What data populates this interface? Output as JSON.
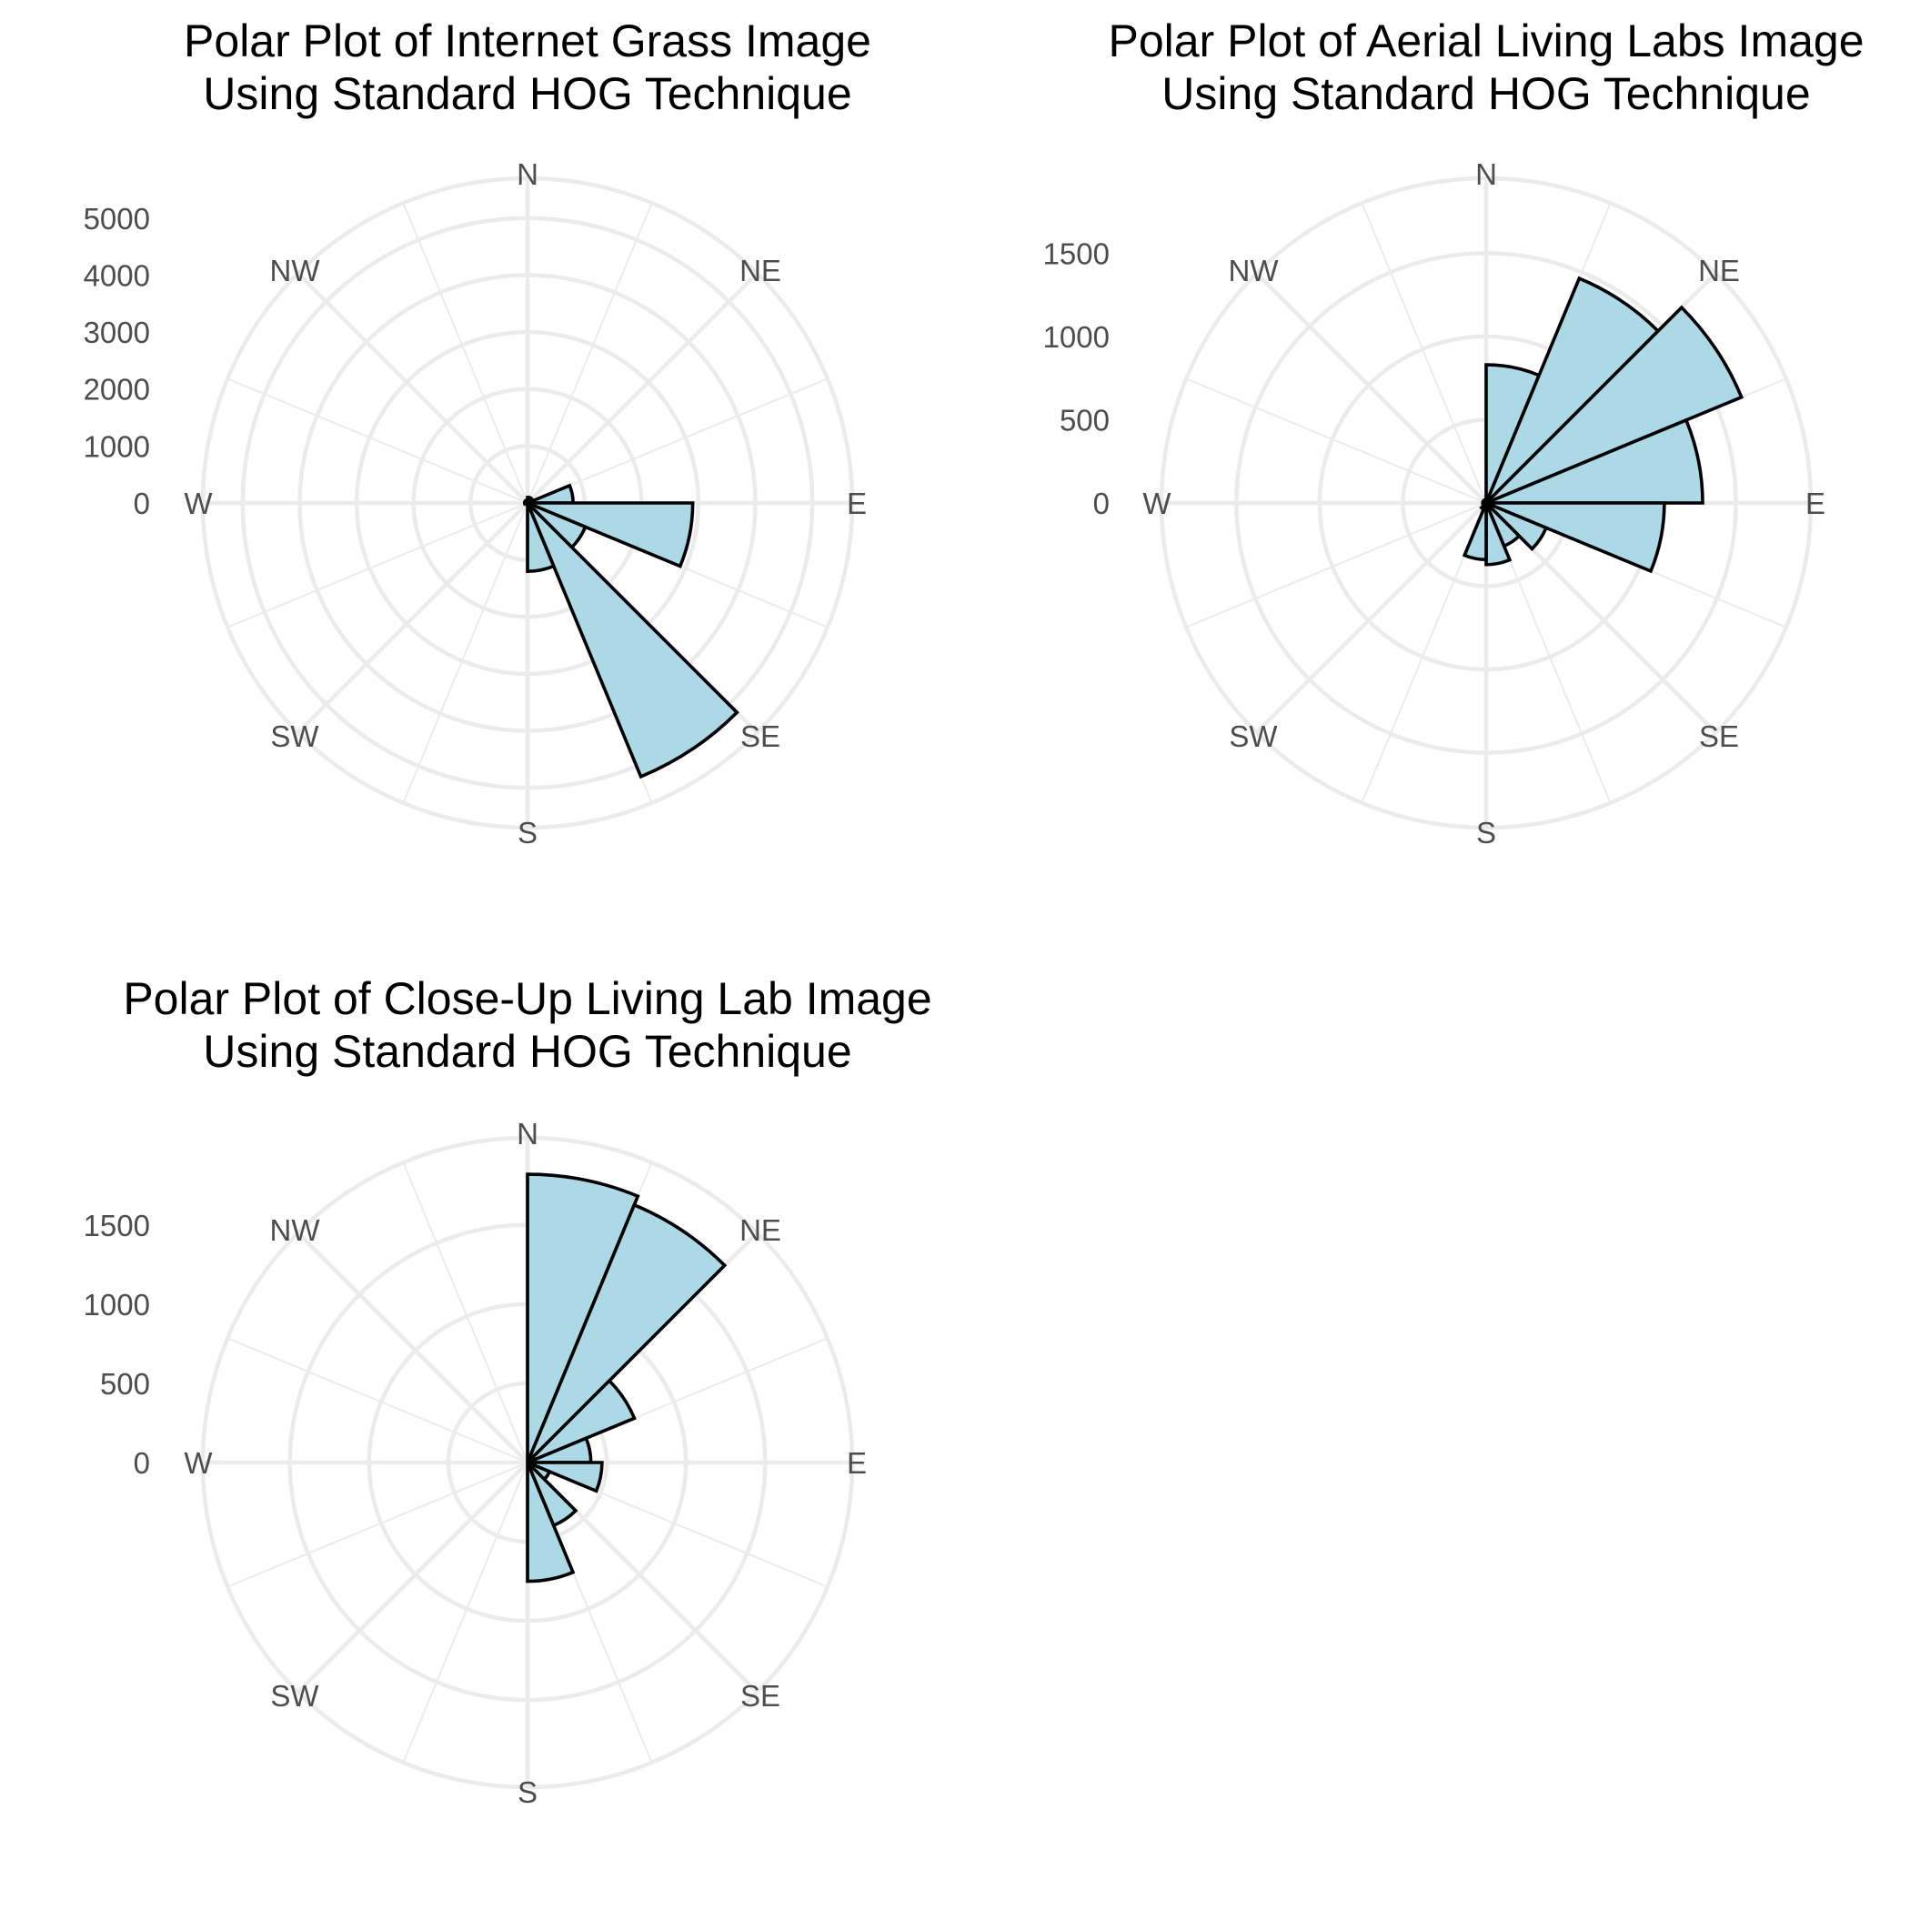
{
  "colors": {
    "bar_fill": "#add8e6",
    "bar_stroke": "#000000",
    "grid": "#ebebeb",
    "axis_text": "#4d4d4d"
  },
  "chart_data": [
    {
      "type": "polar-bar",
      "title_lines": [
        "Polar Plot of Internet Grass Image",
        "Using Standard HOG Technique"
      ],
      "angle_unit": "degrees clockwise from N",
      "directions": [
        "N",
        "NE",
        "E",
        "SE",
        "S",
        "SW",
        "W",
        "NW"
      ],
      "radial_ticks": [
        "0",
        "1000",
        "2000",
        "3000",
        "4000",
        "5000"
      ],
      "radial_tick_values": [
        0,
        1000,
        2000,
        3000,
        4000,
        5000
      ],
      "rmax": 5700,
      "bins": [
        {
          "start": 0,
          "end": 22.5,
          "value": 100
        },
        {
          "start": 22.5,
          "end": 45,
          "value": 100
        },
        {
          "start": 45,
          "end": 67.5,
          "value": 100
        },
        {
          "start": 67.5,
          "end": 90,
          "value": 800
        },
        {
          "start": 90,
          "end": 112.5,
          "value": 2900
        },
        {
          "start": 112.5,
          "end": 135,
          "value": 1100
        },
        {
          "start": 135,
          "end": 157.5,
          "value": 5200
        },
        {
          "start": 157.5,
          "end": 180,
          "value": 1200
        },
        {
          "start": 180,
          "end": 202.5,
          "value": 0
        },
        {
          "start": 202.5,
          "end": 225,
          "value": 0
        },
        {
          "start": 225,
          "end": 247.5,
          "value": 0
        },
        {
          "start": 247.5,
          "end": 270,
          "value": 50
        },
        {
          "start": 270,
          "end": 292.5,
          "value": 50
        },
        {
          "start": 292.5,
          "end": 315,
          "value": 50
        },
        {
          "start": 315,
          "end": 337.5,
          "value": 50
        },
        {
          "start": 337.5,
          "end": 360,
          "value": 50
        }
      ]
    },
    {
      "type": "polar-bar",
      "title_lines": [
        "Polar Plot of Aerial Living Labs Image",
        "Using Standard HOG Technique"
      ],
      "angle_unit": "degrees clockwise from N",
      "directions": [
        "N",
        "NE",
        "E",
        "SE",
        "S",
        "SW",
        "W",
        "NW"
      ],
      "radial_ticks": [
        "0",
        "500",
        "1000",
        "1500"
      ],
      "radial_tick_values": [
        0,
        500,
        1000,
        1500
      ],
      "rmax": 1950,
      "bins": [
        {
          "start": 0,
          "end": 22.5,
          "value": 830
        },
        {
          "start": 22.5,
          "end": 45,
          "value": 1460
        },
        {
          "start": 45,
          "end": 67.5,
          "value": 1660
        },
        {
          "start": 67.5,
          "end": 90,
          "value": 1300
        },
        {
          "start": 90,
          "end": 112.5,
          "value": 1070
        },
        {
          "start": 112.5,
          "end": 135,
          "value": 390
        },
        {
          "start": 135,
          "end": 157.5,
          "value": 280
        },
        {
          "start": 157.5,
          "end": 180,
          "value": 370
        },
        {
          "start": 180,
          "end": 202.5,
          "value": 340
        },
        {
          "start": 202.5,
          "end": 225,
          "value": 40
        },
        {
          "start": 225,
          "end": 247.5,
          "value": 20
        },
        {
          "start": 247.5,
          "end": 270,
          "value": 20
        },
        {
          "start": 270,
          "end": 292.5,
          "value": 20
        },
        {
          "start": 292.5,
          "end": 315,
          "value": 20
        },
        {
          "start": 315,
          "end": 337.5,
          "value": 20
        },
        {
          "start": 337.5,
          "end": 360,
          "value": 20
        }
      ]
    },
    {
      "type": "polar-bar",
      "title_lines": [
        "Polar Plot of Close-Up Living Lab Image",
        "Using Standard HOG Technique"
      ],
      "angle_unit": "degrees clockwise from N",
      "directions": [
        "N",
        "NE",
        "E",
        "SE",
        "S",
        "SW",
        "W",
        "NW"
      ],
      "radial_ticks": [
        "0",
        "500",
        "1000",
        "1500"
      ],
      "radial_tick_values": [
        0,
        500,
        1000,
        1500
      ],
      "rmax": 2050,
      "bins": [
        {
          "start": 0,
          "end": 22.5,
          "value": 1820
        },
        {
          "start": 22.5,
          "end": 45,
          "value": 1760
        },
        {
          "start": 45,
          "end": 67.5,
          "value": 730
        },
        {
          "start": 67.5,
          "end": 90,
          "value": 400
        },
        {
          "start": 90,
          "end": 112.5,
          "value": 470
        },
        {
          "start": 112.5,
          "end": 135,
          "value": 150
        },
        {
          "start": 135,
          "end": 157.5,
          "value": 430
        },
        {
          "start": 157.5,
          "end": 180,
          "value": 750
        },
        {
          "start": 180,
          "end": 202.5,
          "value": 0
        },
        {
          "start": 202.5,
          "end": 225,
          "value": 0
        },
        {
          "start": 225,
          "end": 247.5,
          "value": 0
        },
        {
          "start": 247.5,
          "end": 270,
          "value": 0
        },
        {
          "start": 270,
          "end": 292.5,
          "value": 0
        },
        {
          "start": 292.5,
          "end": 315,
          "value": 0
        },
        {
          "start": 315,
          "end": 337.5,
          "value": 0
        },
        {
          "start": 337.5,
          "end": 360,
          "value": 0
        }
      ]
    }
  ]
}
